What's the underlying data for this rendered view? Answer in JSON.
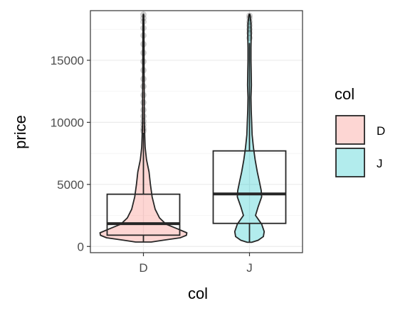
{
  "chart_data": {
    "type": "violin-box",
    "title": "",
    "xlabel": "col",
    "ylabel": "price",
    "ylim": [
      -500,
      19000
    ],
    "yticks": [
      0,
      5000,
      10000,
      15000
    ],
    "ytick_labels": [
      "0",
      "5000",
      "10000",
      "15000"
    ],
    "grid": true,
    "legend": {
      "title": "col",
      "position": "right",
      "entries": [
        "D",
        "J"
      ]
    },
    "colors": {
      "D": "#F8766D",
      "J": "#00BFC4"
    },
    "categories": [
      "D",
      "J"
    ],
    "series": [
      {
        "name": "D",
        "box": {
          "q1": 910,
          "median": 1840,
          "q3": 4210,
          "whisker_low": 357,
          "whisker_high": 9160
        },
        "violin": [
          [
            357,
            0.18
          ],
          [
            500,
            0.45
          ],
          [
            700,
            0.85
          ],
          [
            900,
            0.99
          ],
          [
            1100,
            1.0
          ],
          [
            1400,
            0.8
          ],
          [
            1800,
            0.52
          ],
          [
            2300,
            0.37
          ],
          [
            3000,
            0.27
          ],
          [
            4000,
            0.2
          ],
          [
            5000,
            0.16
          ],
          [
            6000,
            0.13
          ],
          [
            7000,
            0.07
          ],
          [
            8000,
            0.04
          ],
          [
            9000,
            0.03
          ],
          [
            10000,
            0.02
          ],
          [
            12000,
            0.02
          ],
          [
            14000,
            0.015
          ],
          [
            16000,
            0.015
          ],
          [
            18000,
            0.01
          ],
          [
            18700,
            0.005
          ]
        ],
        "outliers": [
          9300,
          9500,
          9800,
          10100,
          10500,
          11000,
          11600,
          12200,
          12900,
          13500,
          14200,
          14900,
          15600,
          16300,
          17000,
          17600,
          18100,
          18400,
          18690
        ]
      },
      {
        "name": "J",
        "box": {
          "q1": 1860,
          "median": 4230,
          "q3": 7700,
          "whisker_low": 335,
          "whisker_high": 16400
        },
        "violin": [
          [
            335,
            0.05
          ],
          [
            500,
            0.2
          ],
          [
            800,
            0.32
          ],
          [
            1200,
            0.34
          ],
          [
            1800,
            0.28
          ],
          [
            2500,
            0.14
          ],
          [
            3200,
            0.2
          ],
          [
            4000,
            0.28
          ],
          [
            4500,
            0.27
          ],
          [
            5200,
            0.23
          ],
          [
            6000,
            0.18
          ],
          [
            7000,
            0.13
          ],
          [
            8000,
            0.09
          ],
          [
            9000,
            0.06
          ],
          [
            10000,
            0.05
          ],
          [
            11000,
            0.04
          ],
          [
            12000,
            0.035
          ],
          [
            13000,
            0.045
          ],
          [
            14000,
            0.04
          ],
          [
            15000,
            0.035
          ],
          [
            16000,
            0.035
          ],
          [
            17000,
            0.04
          ],
          [
            18000,
            0.035
          ],
          [
            18700,
            0.01
          ]
        ],
        "outliers": [
          16800,
          17200,
          17500,
          17800,
          18100,
          18400,
          18600
        ]
      }
    ]
  }
}
